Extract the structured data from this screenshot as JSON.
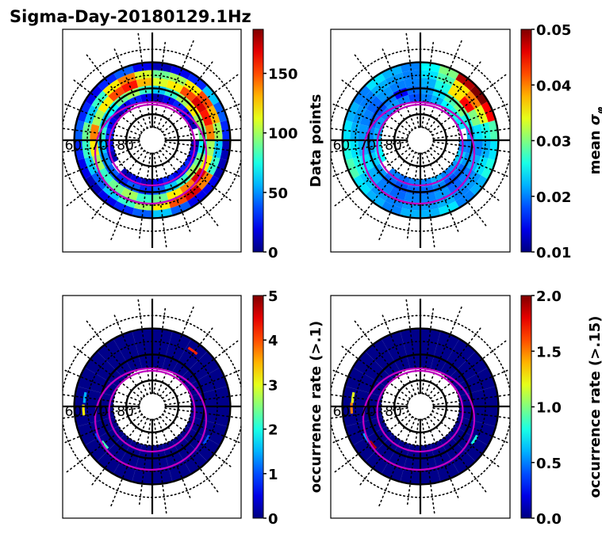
{
  "chart_data": [
    {
      "type": "heatmap",
      "projection": "polar (magnetic latitude / MLT)",
      "title": "Sigma-Day-20180129.1Hz",
      "colorbar": {
        "label": "Data points",
        "min": 0,
        "max": 187,
        "ticks": [
          "0",
          "50",
          "100",
          "150"
        ],
        "tick_values": [
          0,
          50,
          100,
          150
        ],
        "colormap": "jet"
      },
      "lat_labels": [
        "60",
        "70",
        "80"
      ],
      "lat_circles": [
        60,
        70,
        80
      ],
      "lat_bands": [
        [
          60,
          63
        ],
        [
          63,
          66
        ],
        [
          66,
          69
        ],
        [
          69,
          72
        ],
        [
          72,
          75
        ]
      ],
      "mlt_sectors_hours": 24,
      "values": [
        [
          60,
          40,
          20,
          20,
          10,
          10,
          30,
          40,
          60,
          30,
          20,
          10,
          20,
          40,
          30,
          20,
          30,
          40,
          30,
          20,
          10,
          20,
          30,
          40
        ],
        [
          120,
          150,
          170,
          140,
          80,
          60,
          100,
          130,
          150,
          120,
          100,
          90,
          110,
          140,
          120,
          80,
          60,
          90,
          80,
          60,
          40,
          60,
          80,
          100
        ],
        [
          90,
          120,
          140,
          170,
          120,
          100,
          140,
          160,
          170,
          150,
          120,
          110,
          130,
          160,
          150,
          120,
          100,
          140,
          120,
          100,
          80,
          90,
          100,
          80
        ],
        [
          40,
          60,
          80,
          100,
          90,
          70,
          90,
          100,
          120,
          100,
          80,
          60,
          80,
          100,
          90,
          70,
          60,
          80,
          60,
          50,
          40,
          30,
          40,
          30
        ],
        [
          20,
          30,
          20,
          30,
          20,
          10,
          0,
          10,
          20,
          30,
          20,
          10,
          20,
          30,
          20,
          10,
          20,
          30,
          20,
          10,
          0,
          10,
          20,
          10
        ]
      ]
    },
    {
      "type": "heatmap",
      "projection": "polar (magnetic latitude / MLT)",
      "colorbar": {
        "label": "mean σφ",
        "label_main": "mean ",
        "label_symbol": "σ",
        "label_sub": "φ",
        "min": 0.01,
        "max": 0.05,
        "ticks": [
          "0.01",
          "0.02",
          "0.03",
          "0.04",
          "0.05"
        ],
        "tick_values": [
          0.01,
          0.02,
          0.03,
          0.04,
          0.05
        ],
        "colormap": "jet"
      },
      "lat_labels": [
        "60",
        "70",
        "80"
      ],
      "lat_circles": [
        60,
        70,
        80
      ],
      "lat_bands": [
        [
          60,
          63
        ],
        [
          63,
          66
        ],
        [
          66,
          69
        ],
        [
          69,
          72
        ],
        [
          72,
          75
        ]
      ],
      "mlt_sectors_hours": 24,
      "values": [
        [
          0.022,
          0.024,
          0.02,
          0.022,
          0.026,
          0.024,
          0.028,
          0.045,
          0.05,
          0.048,
          0.03,
          0.025,
          0.02,
          0.022,
          0.024,
          0.02,
          0.022,
          0.024,
          0.026,
          0.028,
          0.024,
          0.022,
          0.02,
          0.022
        ],
        [
          0.021,
          0.022,
          0.02,
          0.021,
          0.024,
          0.022,
          0.026,
          0.034,
          0.04,
          0.036,
          0.028,
          0.024,
          0.02,
          0.021,
          0.022,
          0.02,
          0.021,
          0.022,
          0.024,
          0.026,
          0.023,
          0.021,
          0.02,
          0.021
        ],
        [
          0.02,
          0.021,
          0.019,
          0.02,
          0.022,
          0.02,
          0.024,
          0.03,
          0.045,
          0.036,
          0.026,
          0.022,
          0.02,
          0.02,
          0.021,
          0.019,
          0.02,
          0.021,
          0.022,
          0.024,
          0.022,
          0.02,
          0.019,
          0.02
        ],
        [
          0.019,
          0.02,
          0.018,
          0.019,
          0.021,
          0.02,
          0.022,
          0.026,
          0.03,
          0.028,
          0.024,
          0.021,
          0.019,
          0.015,
          0.02,
          0.018,
          0.019,
          0.02,
          0.021,
          0.023,
          0.021,
          0.019,
          0.018,
          0.019
        ],
        [
          0.02,
          0.022,
          0.02,
          0.021,
          0.023,
          0.02,
          0.0,
          0.024,
          0.026,
          0.025,
          0.022,
          0.02,
          0.018,
          0.02,
          0.021,
          0.02,
          0.021,
          0.022,
          0.024,
          0.025,
          0.0,
          0.02,
          0.019,
          0.02
        ]
      ]
    },
    {
      "type": "heatmap",
      "projection": "polar (magnetic latitude / MLT)",
      "colorbar": {
        "label": "occurrence rate (>.1)",
        "min": 0,
        "max": 5,
        "ticks": [
          "0",
          "1",
          "2",
          "3",
          "4",
          "5"
        ],
        "tick_values": [
          0,
          1,
          2,
          3,
          4,
          5
        ],
        "colormap": "jet"
      },
      "lat_labels": [
        "60",
        "70",
        "80"
      ],
      "lat_circles": [
        60,
        70,
        80
      ],
      "mlt_sectors_hours": 24,
      "baseline_value": 0.05,
      "highlights": [
        {
          "mlt": 20.6,
          "lat": 66.5,
          "value": 2.2
        },
        {
          "mlt": 20.0,
          "lat": 66.0,
          "value": 1.0
        },
        {
          "mlt": 18.2,
          "lat": 63.5,
          "value": 3.2
        },
        {
          "mlt": 17.5,
          "lat": 63.8,
          "value": 1.5
        },
        {
          "mlt": 3.9,
          "lat": 65.5,
          "value": 1.0
        },
        {
          "mlt": 9.6,
          "lat": 63.5,
          "value": 4.2
        }
      ]
    },
    {
      "type": "heatmap",
      "projection": "polar (magnetic latitude / MLT)",
      "colorbar": {
        "label": "occurrence rate (>.15)",
        "min": 0.0,
        "max": 2.0,
        "ticks": [
          "0.0",
          "0.5",
          "1.0",
          "1.5",
          "2.0"
        ],
        "tick_values": [
          0,
          0.5,
          1.0,
          1.5,
          2.0
        ],
        "colormap": "jet"
      },
      "lat_labels": [
        "60",
        "70",
        "80"
      ],
      "lat_circles": [
        60,
        70,
        80
      ],
      "mlt_sectors_hours": 24,
      "baseline_value": 0.02,
      "highlights": [
        {
          "mlt": 20.6,
          "lat": 66.5,
          "value": 1.9
        },
        {
          "mlt": 20.0,
          "lat": 66.0,
          "value": 0.6
        },
        {
          "mlt": 18.1,
          "lat": 63.5,
          "value": 1.5
        },
        {
          "mlt": 17.5,
          "lat": 63.8,
          "value": 1.2
        },
        {
          "mlt": 3.9,
          "lat": 65.5,
          "value": 0.8
        }
      ]
    }
  ]
}
